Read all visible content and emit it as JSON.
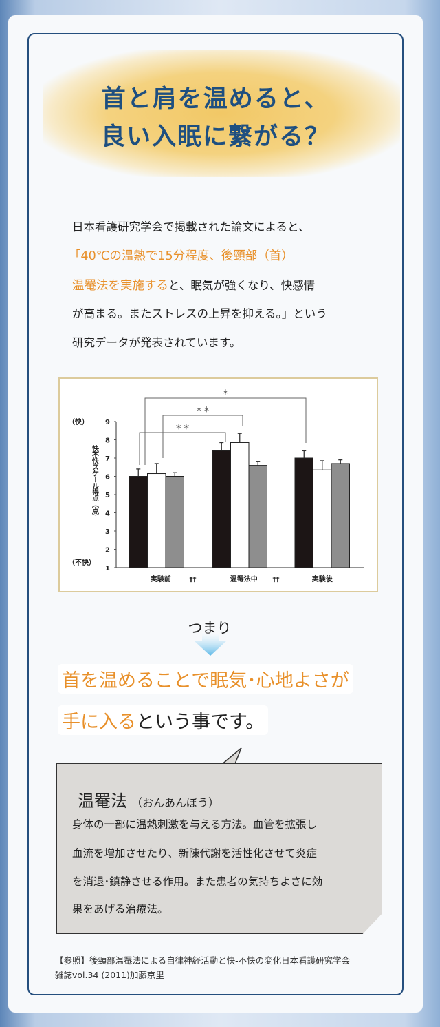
{
  "title": {
    "line1": "首と肩を温めると、",
    "line2": "良い入眠に繋がる？"
  },
  "intro": {
    "line1": "日本看護研究学会で掲載された論文によると、",
    "line2": "「40℃の温熱で15分程度、後頸部（首）",
    "line3_orange": "温罨法を実施する",
    "line3_rest": "と、眠気が強くなり、快感情",
    "line4": "が高まる。またストレスの上昇を抑える。」という",
    "line5": "研究データが発表されています。"
  },
  "chart_data": {
    "type": "bar",
    "ylabel": "快不快スケール得点（点）",
    "ytop_label": "（快）",
    "ybottom_label": "（不快）",
    "ylim": [
      1,
      9
    ],
    "yticks": [
      1,
      2,
      3,
      4,
      5,
      6,
      7,
      8,
      9
    ],
    "categories": [
      "実験前",
      "温罨法中",
      "実験後"
    ],
    "category_marks": [
      "††",
      "††",
      ""
    ],
    "series": [
      {
        "color": "#1c1515",
        "values": [
          6.0,
          7.4,
          7.0
        ],
        "errors": [
          0.4,
          0.45,
          0.4
        ]
      },
      {
        "color": "#ffffff",
        "values": [
          6.15,
          7.85,
          6.35
        ],
        "errors": [
          0.55,
          0.5,
          0.5
        ]
      },
      {
        "color": "#8e8e8e",
        "values": [
          6.0,
          6.6,
          6.7
        ],
        "errors": [
          0.2,
          0.2,
          0.2
        ]
      }
    ],
    "significance": [
      {
        "label": "＊",
        "from": "実験前",
        "to": "実験後"
      },
      {
        "label": "＊＊",
        "from": "実験前",
        "to": "温罨法中"
      },
      {
        "label": "＊＊",
        "from": "実験前",
        "to": "温罨法中"
      }
    ]
  },
  "conclusion": {
    "lead": "つまり",
    "line1": "首を温めることで眠気･心地よさが",
    "line2_orange": "手に入る",
    "line2_rest": "という事です。"
  },
  "note": {
    "term": "温罨法",
    "reading": "（おんあんぼう）",
    "lines": [
      "身体の一部に温熱刺激を与える方法。血管を拡張し",
      "血流を増加させたり、新陳代謝を活性化させて炎症",
      "を消退･鎮静させる作用。また患者の気持ちよさに効",
      "果をあげる治療法。"
    ]
  },
  "reference": {
    "line1": "【参照】後頸部温罨法による自律神経活動と快-不快の変化日本看護研究学会",
    "line2": "雑誌vol.34 (2011)加藤京里"
  },
  "colors": {
    "accent": "#e8902a",
    "title": "#1e4f80"
  }
}
